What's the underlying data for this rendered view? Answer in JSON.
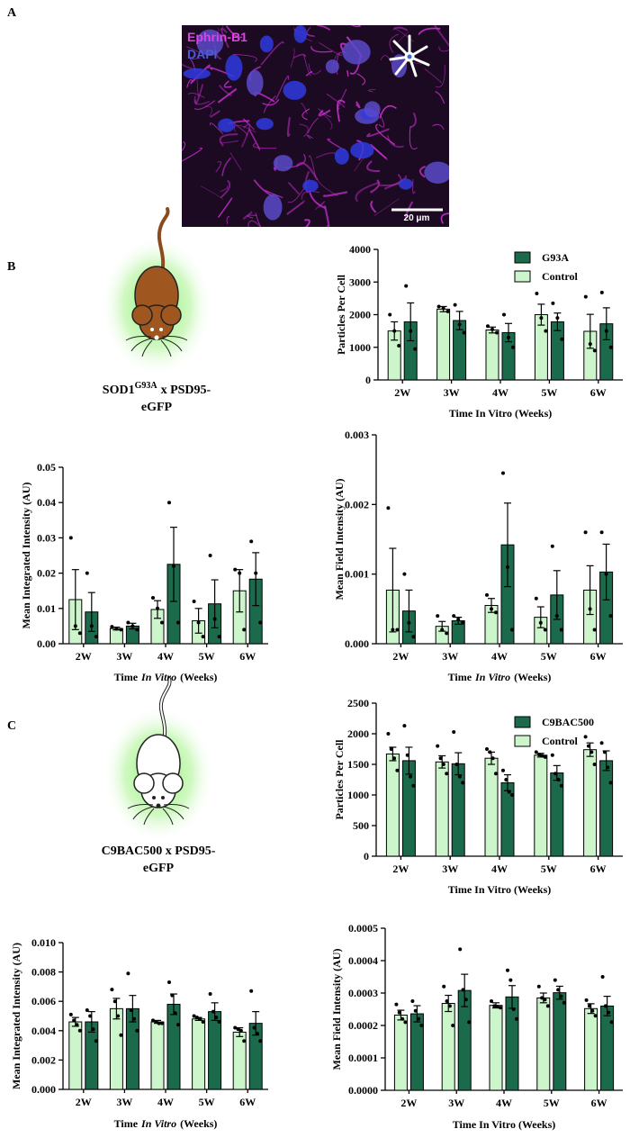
{
  "panels": {
    "a": "A",
    "b": "B",
    "c": "C"
  },
  "image": {
    "channel_1": "Ephrin-B1",
    "channel_2": "DAPI",
    "scale_bar": "20 μm"
  },
  "models": {
    "b": {
      "name": "SOD1",
      "superscript": "G93A",
      "line1_rest": "x PSD95-",
      "line2": "eGFP"
    },
    "c": {
      "line1": "C9BAC500 x PSD95-",
      "line2": "eGFP"
    }
  },
  "chart_data": [
    {
      "type": "bar",
      "y_label": "Particles Per Cell",
      "x_label": "Time In Vitro (Weeks)",
      "categories": [
        "2W",
        "3W",
        "4W",
        "5W",
        "6W"
      ],
      "ylim": [
        0,
        4000
      ],
      "yticks": [
        0,
        1000,
        2000,
        3000,
        4000
      ],
      "legend": "top-right",
      "series": [
        {
          "name": "Control",
          "color": "#ccf5cc",
          "values": [
            1500,
            2170,
            1530,
            2000,
            1490
          ],
          "errors": [
            280,
            80,
            90,
            320,
            520
          ],
          "points": [
            [
              2000,
              1500,
              1050
            ],
            [
              2250,
              2200,
              2100
            ],
            [
              1650,
              1550,
              1450
            ],
            [
              2650,
              1900,
              1500
            ],
            [
              2550,
              1100,
              900
            ]
          ]
        },
        {
          "name": "G93A",
          "color": "#1b6a4b",
          "values": [
            1780,
            1820,
            1450,
            1780,
            1720
          ],
          "errors": [
            580,
            280,
            280,
            270,
            490
          ],
          "points": [
            [
              2880,
              1500,
              950
            ],
            [
              2300,
              1700,
              1450
            ],
            [
              2000,
              1300,
              1000
            ],
            [
              2350,
              1900,
              1250
            ],
            [
              2680,
              1500,
              1000
            ]
          ]
        }
      ]
    },
    {
      "type": "bar",
      "y_label": "Mean Integrated Intensity (AU)",
      "x_label": [
        "Time",
        "In Vitro",
        "(Weeks)"
      ],
      "x_label_italic": 1,
      "categories": [
        "2W",
        "3W",
        "4W",
        "5W",
        "6W"
      ],
      "ylim": [
        0,
        0.05
      ],
      "yticks": [
        {
          "value": 0,
          "label": "0.00"
        },
        0.01,
        0.02,
        0.03,
        0.04,
        0.05
      ],
      "series": [
        {
          "color": "#ccf5cc",
          "values": [
            0.0125,
            0.0043,
            0.0097,
            0.0065,
            0.015
          ],
          "errors": [
            0.0085,
            0.0004,
            0.0025,
            0.0035,
            0.006
          ],
          "points": [
            [
              0.03,
              0.005,
              0.003
            ],
            [
              0.0048,
              0.0042,
              0.004
            ],
            [
              0.013,
              0.01,
              0.006
            ],
            [
              0.012,
              0.006,
              0.002
            ],
            [
              0.021,
              0.02,
              0.004
            ]
          ]
        },
        {
          "color": "#1b6a4b",
          "values": [
            0.009,
            0.005,
            0.0225,
            0.0113,
            0.0183
          ],
          "errors": [
            0.0055,
            0.0008,
            0.0105,
            0.0068,
            0.0075
          ],
          "points": [
            [
              0.02,
              0.005,
              0.002
            ],
            [
              0.006,
              0.005,
              0.004
            ],
            [
              0.04,
              0.022,
              0.006
            ],
            [
              0.025,
              0.007,
              0.002
            ],
            [
              0.029,
              0.02,
              0.006
            ]
          ]
        }
      ]
    },
    {
      "type": "bar",
      "y_label": "Mean Field Intensity (AU)",
      "x_label": [
        "Time",
        "In Vitro",
        "(Weeks)"
      ],
      "x_label_italic": 1,
      "categories": [
        "2W",
        "3W",
        "4W",
        "5W",
        "6W"
      ],
      "ylim": [
        0,
        0.003
      ],
      "yticks": [
        {
          "value": 0,
          "label": "0.000"
        },
        0.001,
        0.002,
        0.003
      ],
      "series": [
        {
          "color": "#ccf5cc",
          "values": [
            0.00077,
            0.00025,
            0.00055,
            0.00038,
            0.00077
          ],
          "errors": [
            0.0006,
            7e-05,
            0.0001,
            0.00015,
            0.00035
          ],
          "points": [
            [
              0.00195,
              0.0002,
              0.0002
            ],
            [
              0.0004,
              0.0002,
              0.00015
            ],
            [
              0.0007,
              0.0005,
              0.00045
            ],
            [
              0.00065,
              0.0003,
              0.0002
            ],
            [
              0.0016,
              0.0005,
              0.0002
            ]
          ]
        },
        {
          "color": "#1b6a4b",
          "values": [
            0.00047,
            0.00033,
            0.00142,
            0.0007,
            0.00103
          ],
          "errors": [
            0.0003,
            5e-05,
            0.0006,
            0.00035,
            0.0004
          ],
          "points": [
            [
              0.001,
              0.0003,
              0.0001
            ],
            [
              0.0004,
              0.00035,
              0.0003
            ],
            [
              0.00245,
              0.0011,
              0.0002
            ],
            [
              0.0014,
              0.0004,
              0.0002
            ],
            [
              0.0016,
              0.001,
              0.0004
            ]
          ]
        }
      ]
    },
    {
      "type": "bar",
      "y_label": "Particles Per Cell",
      "x_label": "Time In Vitro (Weeks)",
      "categories": [
        "2W",
        "3W",
        "4W",
        "5W",
        "6W"
      ],
      "ylim": [
        0,
        2500
      ],
      "yticks": [
        0,
        500,
        1000,
        1500,
        2000,
        2500
      ],
      "legend": "top-right",
      "series": [
        {
          "name": "Control",
          "color": "#ccf5cc",
          "values": [
            1670,
            1540,
            1600,
            1650,
            1740
          ],
          "errors": [
            110,
            100,
            100,
            30,
            110
          ],
          "points": [
            [
              2000,
              1750,
              1600,
              1400
            ],
            [
              1800,
              1600,
              1500,
              1350
            ],
            [
              1750,
              1700,
              1600,
              1350
            ],
            [
              1700,
              1660,
              1640,
              1620
            ],
            [
              1950,
              1800,
              1700,
              1500
            ]
          ]
        },
        {
          "name": "C9BAC500",
          "color": "#1b6a4b",
          "values": [
            1560,
            1510,
            1200,
            1360,
            1560
          ],
          "errors": [
            220,
            180,
            130,
            120,
            160
          ],
          "points": [
            [
              2130,
              1650,
              1300,
              1150
            ],
            [
              2030,
              1500,
              1300,
              1200
            ],
            [
              1400,
              1250,
              1050,
              1000
            ],
            [
              1650,
              1350,
              1250,
              1150
            ],
            [
              1850,
              1700,
              1450,
              1200
            ]
          ]
        }
      ]
    },
    {
      "type": "bar",
      "y_label": "Mean Integrated Intensity (AU)",
      "x_label": [
        "Time",
        "In Vitro",
        "(Weeks)"
      ],
      "x_label_italic": 1,
      "categories": [
        "2W",
        "3W",
        "4W",
        "5W",
        "6W"
      ],
      "ylim": [
        0,
        0.01
      ],
      "yticks": [
        {
          "value": 0,
          "label": "0.000"
        },
        {
          "value": 0.002,
          "label": "0.002"
        },
        {
          "value": 0.004,
          "label": "0.004"
        },
        {
          "value": 0.006,
          "label": "0.006"
        },
        {
          "value": 0.008,
          "label": "0.008"
        },
        {
          "value": 0.01,
          "label": "0.010"
        }
      ],
      "series": [
        {
          "color": "#ccf5cc",
          "values": [
            0.0046,
            0.0055,
            0.0046,
            0.0048,
            0.0039
          ],
          "errors": [
            0.0003,
            0.0007,
            0.0001,
            0.0001,
            0.0003
          ],
          "points": [
            [
              0.0051,
              0.0047,
              0.0044,
              0.004
            ],
            [
              0.0068,
              0.006,
              0.005,
              0.0037
            ],
            [
              0.0047,
              0.0046,
              0.0045,
              0.0045
            ],
            [
              0.005,
              0.0049,
              0.0048,
              0.0046
            ],
            [
              0.0042,
              0.0041,
              0.004,
              0.0033
            ]
          ]
        },
        {
          "color": "#1b6a4b",
          "values": [
            0.0046,
            0.0055,
            0.0058,
            0.0053,
            0.0045
          ],
          "errors": [
            0.0007,
            0.0009,
            0.0007,
            0.0006,
            0.0008
          ],
          "points": [
            [
              0.0054,
              0.005,
              0.0041,
              0.0033
            ],
            [
              0.0079,
              0.0054,
              0.0048,
              0.004
            ],
            [
              0.0073,
              0.0064,
              0.0052,
              0.0044
            ],
            [
              0.0065,
              0.0053,
              0.0049,
              0.0046
            ],
            [
              0.0067,
              0.0042,
              0.0038,
              0.0033
            ]
          ]
        }
      ]
    },
    {
      "type": "bar",
      "y_label": "Mean Field Intensity (AU)",
      "x_label": "Time In Vitro (Weeks)",
      "categories": [
        "2W",
        "3W",
        "4W",
        "5W",
        "6W"
      ],
      "ylim": [
        0,
        0.0005
      ],
      "yticks": [
        {
          "value": 0,
          "label": "0.0000"
        },
        {
          "value": 0.0001,
          "label": "0.0001"
        },
        {
          "value": 0.0002,
          "label": "0.0002"
        },
        {
          "value": 0.0003,
          "label": "0.0003"
        },
        {
          "value": 0.0004,
          "label": "0.0004"
        },
        {
          "value": 0.0005,
          "label": "0.0005"
        }
      ],
      "series": [
        {
          "color": "#ccf5cc",
          "values": [
            0.000232,
            0.000268,
            0.000262,
            0.000285,
            0.000252
          ],
          "errors": [
            1.5e-05,
            2.5e-05,
            8e-06,
            1.5e-05,
            1.5e-05
          ],
          "points": [
            [
              0.000265,
              0.00024,
              0.00022,
              0.00021
            ],
            [
              0.00032,
              0.000275,
              0.00026,
              0.0002
            ],
            [
              0.000275,
              0.00026,
              0.000258,
              0.000255
            ],
            [
              0.00032,
              0.000285,
              0.00028,
              0.00026
            ],
            [
              0.000278,
              0.00026,
              0.000245,
              0.00023
            ]
          ]
        },
        {
          "color": "#1b6a4b",
          "values": [
            0.000236,
            0.000308,
            0.000288,
            0.000301,
            0.00026
          ],
          "errors": [
            2.5e-05,
            5e-05,
            3.5e-05,
            2e-05,
            3e-05
          ],
          "points": [
            [
              0.000275,
              0.000245,
              0.00022,
              0.0002
            ],
            [
              0.000435,
              0.00031,
              0.00028,
              0.00021
            ],
            [
              0.00037,
              0.00034,
              0.00025,
              0.00022
            ],
            [
              0.00034,
              0.00031,
              0.00029,
              0.00027
            ],
            [
              0.00035,
              0.00026,
              0.00024,
              0.00021
            ]
          ]
        }
      ]
    }
  ]
}
